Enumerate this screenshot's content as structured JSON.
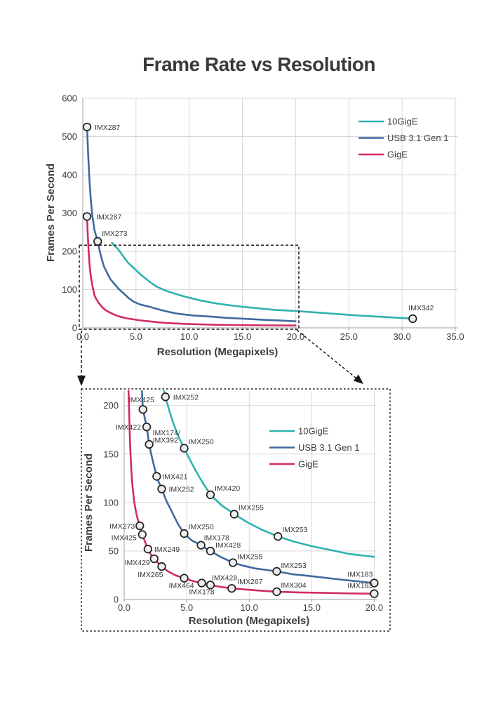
{
  "page": {
    "title": "Frame Rate vs Resolution"
  },
  "colors": {
    "teal": "#2eb3ae",
    "blue": "#3f6a9e",
    "pink": "#d12b63",
    "grid": "#d8d8d8",
    "axis": "#b0b0b0",
    "text": "#3d3d3d",
    "marker_fill": "#efefef",
    "marker_stroke": "#1f1f1f",
    "annotation": "#1a1a1a"
  },
  "legend": {
    "items": [
      {
        "label": "10GigE",
        "color": "#2eb3ae"
      },
      {
        "label": "USB 3.1 Gen 1",
        "color": "#3f6a9e"
      },
      {
        "label": "GigE",
        "color": "#d12b63"
      }
    ]
  },
  "chart_data": [
    {
      "id": "main",
      "type": "line",
      "title": "Frame Rate vs Resolution",
      "xlabel": "Resolution (Megapixels)",
      "ylabel": "Frames Per Second",
      "xlim": [
        0,
        35.2
      ],
      "ylim": [
        0,
        600
      ],
      "xticks": [
        0,
        5,
        10,
        15,
        20,
        25,
        30,
        35
      ],
      "yticks": [
        0,
        100,
        200,
        300,
        400,
        500,
        600
      ],
      "grid": true,
      "legend_position": "upper right",
      "zoom_region": {
        "x": [
          0,
          20.3
        ],
        "y": [
          0,
          216
        ]
      },
      "series": [
        {
          "name": "10GigE",
          "color": "#2eb3ae",
          "curve": [
            [
              2.75,
              222
            ],
            [
              3.0,
              214
            ],
            [
              3.3,
              206
            ],
            [
              3.6,
              195
            ],
            [
              3.9,
              183
            ],
            [
              4.3,
              169
            ],
            [
              4.8,
              156
            ],
            [
              5.3,
              143
            ],
            [
              5.8,
              131
            ],
            [
              6.35,
              119
            ],
            [
              6.9,
              108
            ],
            [
              7.8,
              97
            ],
            [
              8.8,
              88
            ],
            [
              9.8,
              80
            ],
            [
              11,
              72
            ],
            [
              12.3,
              65
            ],
            [
              13.5,
              60
            ],
            [
              15,
              55
            ],
            [
              16.5,
              51
            ],
            [
              18,
              47
            ],
            [
              20,
              44
            ],
            [
              22,
              40
            ],
            [
              24,
              36
            ],
            [
              26,
              32
            ],
            [
              28.5,
              28
            ],
            [
              31,
              24
            ]
          ],
          "points": [
            {
              "x": 31,
              "y": 24,
              "label": "IMX342",
              "anchor": "start",
              "dx": -6,
              "dy": -12
            }
          ]
        },
        {
          "name": "USB 3.1 Gen 1",
          "color": "#3f6a9e",
          "curve": [
            [
              0.4,
              525
            ],
            [
              0.5,
              455
            ],
            [
              0.62,
              390
            ],
            [
              0.75,
              335
            ],
            [
              0.9,
              292
            ],
            [
              1.1,
              255
            ],
            [
              1.4,
              226
            ],
            [
              1.6,
              200
            ],
            [
              1.8,
              178
            ],
            [
              2.0,
              160
            ],
            [
              2.3,
              143
            ],
            [
              2.6,
              127
            ],
            [
              3.0,
              114
            ],
            [
              3.4,
              101
            ],
            [
              3.8,
              91
            ],
            [
              4.3,
              78
            ],
            [
              4.8,
              68
            ],
            [
              5.4,
              61
            ],
            [
              6.15,
              56
            ],
            [
              6.9,
              50
            ],
            [
              7.7,
              44
            ],
            [
              8.7,
              38
            ],
            [
              9.5,
              35
            ],
            [
              10.5,
              32
            ],
            [
              12.2,
              29
            ],
            [
              13.5,
              26
            ],
            [
              15,
              24
            ],
            [
              17,
              21
            ],
            [
              18.5,
              19
            ],
            [
              20,
              17
            ]
          ],
          "points": [
            {
              "x": 0.4,
              "y": 525,
              "label": "IMX287",
              "anchor": "start",
              "dx": 11,
              "dy": 4
            },
            {
              "x": 1.4,
              "y": 226,
              "label": "IMX273",
              "anchor": "start",
              "dx": 6,
              "dy": -8
            }
          ]
        },
        {
          "name": "GigE",
          "color": "#d12b63",
          "curve": [
            [
              0.4,
              291
            ],
            [
              0.45,
              255
            ],
            [
              0.5,
              225
            ],
            [
              0.56,
              195
            ],
            [
              0.65,
              160
            ],
            [
              0.75,
              135
            ],
            [
              0.9,
              110
            ],
            [
              1.1,
              85
            ],
            [
              1.25,
              76
            ],
            [
              1.45,
              67
            ],
            [
              1.65,
              60
            ],
            [
              1.9,
              52
            ],
            [
              2.15,
              46
            ],
            [
              2.4,
              42
            ],
            [
              2.7,
              38
            ],
            [
              3.0,
              34
            ],
            [
              3.5,
              29
            ],
            [
              4.1,
              25
            ],
            [
              4.8,
              22
            ],
            [
              5.5,
              19
            ],
            [
              6.2,
              17
            ],
            [
              6.9,
              15
            ],
            [
              7.7,
              13
            ],
            [
              8.6,
              11.5
            ],
            [
              10,
              10
            ],
            [
              11,
              9
            ],
            [
              12.2,
              8
            ],
            [
              14,
              7.3
            ],
            [
              16,
              6.8
            ],
            [
              18,
              6.3
            ],
            [
              20,
              6
            ]
          ],
          "points": [
            {
              "x": 0.4,
              "y": 291,
              "label": "IMX287",
              "anchor": "start",
              "dx": 13,
              "dy": 4
            }
          ]
        }
      ]
    },
    {
      "id": "zoom",
      "type": "line",
      "title": "",
      "xlabel": "Resolution (Megapixels)",
      "ylabel": "Frames Per Second",
      "xlim": [
        0,
        20.2
      ],
      "ylim": [
        0,
        215
      ],
      "xticks": [
        0,
        5,
        10,
        15,
        20
      ],
      "yticks": [
        0,
        50,
        100,
        150,
        200
      ],
      "grid": true,
      "legend_position": "upper right",
      "series": [
        {
          "name": "10GigE",
          "color": "#2eb3ae",
          "curve": [
            [
              3.18,
              215
            ],
            [
              3.3,
              209
            ],
            [
              3.6,
              195
            ],
            [
              3.9,
              183
            ],
            [
              4.3,
              169
            ],
            [
              4.8,
              156
            ],
            [
              5.3,
              143
            ],
            [
              5.8,
              131
            ],
            [
              6.35,
              119
            ],
            [
              6.9,
              108
            ],
            [
              7.8,
              97
            ],
            [
              8.8,
              88
            ],
            [
              9.8,
              80
            ],
            [
              11,
              72
            ],
            [
              12.3,
              65
            ],
            [
              13.5,
              60
            ],
            [
              15,
              55
            ],
            [
              16.5,
              51
            ],
            [
              18,
              47
            ],
            [
              20,
              44
            ]
          ],
          "points": [
            {
              "x": 3.3,
              "y": 209,
              "label": "IMX252",
              "anchor": "start",
              "dx": 11,
              "dy": 4
            },
            {
              "x": 4.8,
              "y": 156,
              "label": "IMX250",
              "anchor": "start",
              "dx": 6,
              "dy": -6
            },
            {
              "x": 6.9,
              "y": 108,
              "label": "IMX420",
              "anchor": "start",
              "dx": 6,
              "dy": -6
            },
            {
              "x": 8.8,
              "y": 88,
              "label": "IMX255",
              "anchor": "start",
              "dx": 6,
              "dy": -6
            },
            {
              "x": 12.3,
              "y": 65,
              "label": "IMX253",
              "anchor": "start",
              "dx": 6,
              "dy": -6
            }
          ]
        },
        {
          "name": "USB 3.1 Gen 1",
          "color": "#3f6a9e",
          "curve": [
            [
              1.42,
              215
            ],
            [
              1.46,
              205
            ],
            [
              1.5,
              196
            ],
            [
              1.65,
              187
            ],
            [
              1.8,
              178
            ],
            [
              1.9,
              169
            ],
            [
              2.0,
              160
            ],
            [
              2.2,
              148
            ],
            [
              2.4,
              137
            ],
            [
              2.6,
              127
            ],
            [
              2.8,
              120
            ],
            [
              3.0,
              114
            ],
            [
              3.4,
              101
            ],
            [
              3.8,
              91
            ],
            [
              4.3,
              78
            ],
            [
              4.8,
              68
            ],
            [
              5.4,
              61
            ],
            [
              6.15,
              56
            ],
            [
              6.5,
              53
            ],
            [
              6.9,
              50
            ],
            [
              7.7,
              44
            ],
            [
              8.7,
              38
            ],
            [
              9.5,
              35
            ],
            [
              10.5,
              32
            ],
            [
              12.2,
              29
            ],
            [
              13.5,
              26
            ],
            [
              15,
              24
            ],
            [
              17,
              21
            ],
            [
              18.5,
              19
            ],
            [
              20,
              17
            ]
          ],
          "points": [
            {
              "x": 1.5,
              "y": 196,
              "label": "IMX425",
              "anchor": "middle",
              "dx": -2,
              "dy": -10
            },
            {
              "x": 1.8,
              "y": 178,
              "label": "IMX422",
              "anchor": "end",
              "dx": -8,
              "dy": 4
            },
            {
              "x": 2.0,
              "y": 160,
              "label": "IMX174/\nIMX392",
              "anchor": "start",
              "dx": 5,
              "dy": -13
            },
            {
              "x": 2.6,
              "y": 127,
              "label": "IMX421",
              "anchor": "start",
              "dx": 8,
              "dy": 4
            },
            {
              "x": 3.0,
              "y": 114,
              "label": "IMX252",
              "anchor": "start",
              "dx": 10,
              "dy": 4
            },
            {
              "x": 4.8,
              "y": 68,
              "label": "IMX250",
              "anchor": "start",
              "dx": 6,
              "dy": -6
            },
            {
              "x": 6.15,
              "y": 56,
              "label": "IMX178",
              "anchor": "start",
              "dx": 4,
              "dy": -7
            },
            {
              "x": 6.9,
              "y": 50,
              "label": "IMX428",
              "anchor": "start",
              "dx": 7,
              "dy": -5
            },
            {
              "x": 8.7,
              "y": 38,
              "label": "IMX255",
              "anchor": "start",
              "dx": 6,
              "dy": -5
            },
            {
              "x": 12.2,
              "y": 29,
              "label": "IMX253",
              "anchor": "start",
              "dx": 6,
              "dy": -5
            },
            {
              "x": 20,
              "y": 17,
              "label": "IMX183",
              "anchor": "end",
              "dx": -2,
              "dy": -9
            }
          ]
        },
        {
          "name": "GigE",
          "color": "#d12b63",
          "curve": [
            [
              0.35,
              215
            ],
            [
              0.4,
              192
            ],
            [
              0.45,
              170
            ],
            [
              0.5,
              152
            ],
            [
              0.58,
              132
            ],
            [
              0.68,
              115
            ],
            [
              0.8,
              101
            ],
            [
              0.95,
              90
            ],
            [
              1.1,
              82
            ],
            [
              1.25,
              76
            ],
            [
              1.45,
              67
            ],
            [
              1.65,
              60
            ],
            [
              1.9,
              52
            ],
            [
              2.15,
              46
            ],
            [
              2.4,
              42
            ],
            [
              2.7,
              38
            ],
            [
              3.0,
              34
            ],
            [
              3.5,
              29
            ],
            [
              4.1,
              25
            ],
            [
              4.8,
              22
            ],
            [
              5.5,
              19
            ],
            [
              6.2,
              17
            ],
            [
              6.9,
              15
            ],
            [
              7.7,
              13
            ],
            [
              8.6,
              11.5
            ],
            [
              10,
              10
            ],
            [
              11,
              9
            ],
            [
              12.2,
              8
            ],
            [
              14,
              7.3
            ],
            [
              16,
              6.8
            ],
            [
              18,
              6.3
            ],
            [
              20,
              6
            ]
          ],
          "points": [
            {
              "x": 1.25,
              "y": 76,
              "label": "IMX273",
              "anchor": "end",
              "dx": -7,
              "dy": 4
            },
            {
              "x": 1.45,
              "y": 67,
              "label": "IMX425",
              "anchor": "end",
              "dx": -8,
              "dy": 8
            },
            {
              "x": 1.9,
              "y": 52,
              "label": "IMX249",
              "anchor": "start",
              "dx": 9,
              "dy": 4
            },
            {
              "x": 2.4,
              "y": 42,
              "label": "IMX429",
              "anchor": "end",
              "dx": -6,
              "dy": 9
            },
            {
              "x": 3.0,
              "y": 34,
              "label": "IMX265",
              "anchor": "end",
              "dx": 2,
              "dy": 15
            },
            {
              "x": 4.8,
              "y": 22,
              "label": "IMX464",
              "anchor": "middle",
              "dx": -4,
              "dy": 14
            },
            {
              "x": 6.2,
              "y": 17,
              "label": "IMX178",
              "anchor": "middle",
              "dx": 0,
              "dy": 16
            },
            {
              "x": 6.9,
              "y": 15,
              "label": "IMX428",
              "anchor": "start",
              "dx": 2,
              "dy": -7
            },
            {
              "x": 8.6,
              "y": 11.5,
              "label": "IMX267",
              "anchor": "start",
              "dx": 8,
              "dy": -6
            },
            {
              "x": 12.2,
              "y": 8,
              "label": "IMX304",
              "anchor": "start",
              "dx": 6,
              "dy": -6
            },
            {
              "x": 20,
              "y": 6,
              "label": "IMX183",
              "anchor": "end",
              "dx": -2,
              "dy": -8
            }
          ]
        }
      ]
    }
  ]
}
